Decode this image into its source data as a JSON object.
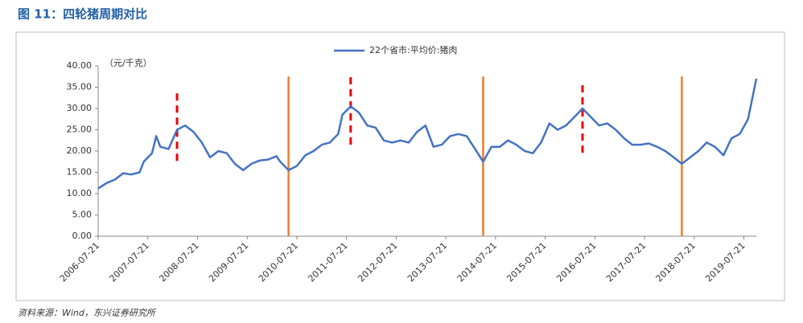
{
  "chart_data": {
    "type": "line",
    "title": "图 11：四轮猪周期对比",
    "source": "资料来源：Wind，东兴证券研究所",
    "y_label": "（元/千克）",
    "x": [
      "2006-07-21",
      "2006-09-21",
      "2006-11-21",
      "2007-01-21",
      "2007-03-21",
      "2007-05-21",
      "2007-06-21",
      "2007-08-21",
      "2007-09-21",
      "2007-10-21",
      "2007-12-21",
      "2008-02-21",
      "2008-04-21",
      "2008-06-21",
      "2008-08-21",
      "2008-10-21",
      "2008-12-21",
      "2009-02-21",
      "2009-04-21",
      "2009-06-21",
      "2009-08-21",
      "2009-10-21",
      "2009-12-21",
      "2010-02-21",
      "2010-03-21",
      "2010-05-21",
      "2010-07-21",
      "2010-09-21",
      "2010-11-21",
      "2011-01-21",
      "2011-03-21",
      "2011-05-21",
      "2011-06-21",
      "2011-08-21",
      "2011-10-21",
      "2011-12-21",
      "2012-02-21",
      "2012-04-21",
      "2012-06-21",
      "2012-08-21",
      "2012-10-21",
      "2012-12-21",
      "2013-02-21",
      "2013-04-21",
      "2013-06-21",
      "2013-08-21",
      "2013-10-21",
      "2013-12-21",
      "2014-02-21",
      "2014-04-21",
      "2014-06-21",
      "2014-08-21",
      "2014-10-21",
      "2014-12-21",
      "2015-02-21",
      "2015-04-21",
      "2015-06-21",
      "2015-08-21",
      "2015-10-21",
      "2015-12-21",
      "2016-02-21",
      "2016-04-21",
      "2016-06-21",
      "2016-08-21",
      "2016-10-21",
      "2016-12-21",
      "2017-02-21",
      "2017-04-21",
      "2017-06-21",
      "2017-08-21",
      "2017-10-21",
      "2017-12-21",
      "2018-02-21",
      "2018-04-21",
      "2018-06-21",
      "2018-08-21",
      "2018-10-21",
      "2018-12-21",
      "2019-02-21",
      "2019-04-21",
      "2019-06-21",
      "2019-08-21",
      "2019-10-21"
    ],
    "series": [
      {
        "name": "22个省市:平均价:猪肉",
        "color": "#4472c4",
        "values": [
          11.2,
          12.5,
          13.3,
          14.8,
          14.5,
          15.0,
          17.5,
          19.5,
          23.5,
          21,
          20.5,
          25,
          26,
          24.5,
          22,
          18.5,
          20,
          19.5,
          17,
          15.5,
          17,
          17.8,
          18,
          18.8,
          17.5,
          15.5,
          16.5,
          19,
          20,
          21.5,
          22,
          24,
          28.5,
          30.5,
          29,
          26,
          25.5,
          22.5,
          22,
          22.5,
          22,
          24.5,
          26,
          21,
          21.5,
          23.5,
          24,
          23.5,
          20.5,
          17.5,
          21,
          21,
          22.5,
          21.5,
          20,
          19.5,
          22,
          26.5,
          25,
          26,
          28,
          30,
          28,
          26,
          26.5,
          25,
          23,
          21.5,
          21.5,
          21.8,
          21,
          20,
          18.5,
          17,
          18.5,
          20,
          22,
          21,
          19,
          23,
          24,
          27.5,
          37
        ]
      }
    ],
    "xlim": [
      "2006-07-21",
      "2019-10-21"
    ],
    "xticks": [
      "2006-07-21",
      "2007-07-21",
      "2008-07-21",
      "2009-07-21",
      "2010-07-21",
      "2011-07-21",
      "2012-07-21",
      "2013-07-21",
      "2014-07-21",
      "2015-07-21",
      "2016-07-21",
      "2017-07-21",
      "2018-07-21",
      "2019-07-21"
    ],
    "ylim": [
      0,
      40
    ],
    "yticks": [
      {
        "value": 0,
        "label": "0.00"
      },
      {
        "value": 5,
        "label": "5.00"
      },
      {
        "value": 10,
        "label": "10.00"
      },
      {
        "value": 15,
        "label": "15.00"
      },
      {
        "value": 20,
        "label": "20.00"
      },
      {
        "value": 25,
        "label": "25.00"
      },
      {
        "value": 30,
        "label": "30.00"
      },
      {
        "value": 35,
        "label": "35.00"
      },
      {
        "value": 40,
        "label": "40.00"
      }
    ],
    "vlines": [
      {
        "x": "2008-02-21",
        "ymin": 17.7,
        "ymax": 33.8,
        "color": "#e8000b",
        "dashed": true
      },
      {
        "x": "2011-08-21",
        "ymin": 21.5,
        "ymax": 37.5,
        "color": "#e8000b",
        "dashed": true
      },
      {
        "x": "2016-04-21",
        "ymin": 19.6,
        "ymax": 35.8,
        "color": "#e8000b",
        "dashed": true
      },
      {
        "x": "2010-05-21",
        "ymin": 0,
        "ymax": 37.5,
        "color": "#ed7d31",
        "dashed": false
      },
      {
        "x": "2014-04-21",
        "ymin": 0,
        "ymax": 37.5,
        "color": "#ed7d31",
        "dashed": false
      },
      {
        "x": "2018-04-21",
        "ymin": 0,
        "ymax": 37.5,
        "color": "#ed7d31",
        "dashed": false
      }
    ]
  }
}
